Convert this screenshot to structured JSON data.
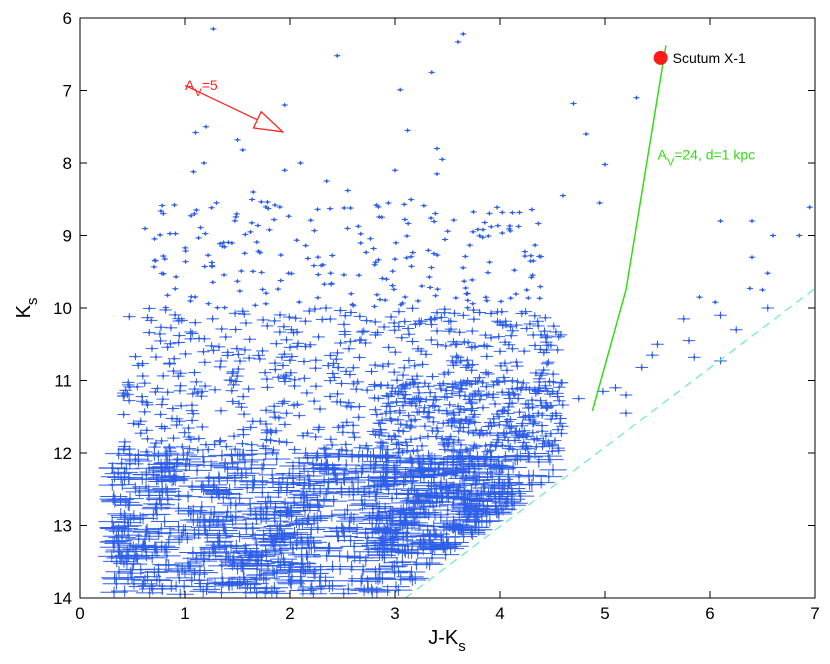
{
  "chart_data": {
    "type": "scatter",
    "xlabel": "J-K",
    "xlabel_sub": "s",
    "ylabel": "K",
    "ylabel_sub": "s",
    "xlim": [
      0,
      7
    ],
    "ylim": [
      6,
      14
    ],
    "y_reversed": true,
    "x_ticks": [
      "0",
      "1",
      "2",
      "3",
      "4",
      "5",
      "6",
      "7"
    ],
    "y_ticks": [
      "6",
      "7",
      "8",
      "9",
      "10",
      "11",
      "12",
      "13",
      "14"
    ],
    "grid": false,
    "colors": {
      "stars": "#2f5fe8",
      "source": "#ff1a1a",
      "extinction_line": "#33dd11",
      "limit_line": "#66e8cc",
      "arrow": "#ff2222"
    },
    "highlighted_source": {
      "label": "Scutum X-1",
      "x": 5.53,
      "y": 6.55
    },
    "reddening_vector": {
      "label_main": "A",
      "label_sub": "V",
      "label_rest": "=5",
      "x0": 1.0,
      "y0": 6.93,
      "x1": 1.93,
      "y1": 7.57
    },
    "extinction_track": {
      "label_main": "A",
      "label_sub": "V",
      "label_rest": "=24, d=1 kpc",
      "points": [
        [
          4.88,
          11.42
        ],
        [
          5.2,
          9.75
        ],
        [
          5.58,
          6.38
        ]
      ]
    },
    "completeness_limit": {
      "style": "dashed",
      "points": [
        [
          3.1,
          14.0
        ],
        [
          7.0,
          9.73
        ]
      ]
    },
    "sparse_stars": [
      [
        1.27,
        6.15
      ],
      [
        3.65,
        6.22
      ],
      [
        3.6,
        6.33
      ],
      [
        2.45,
        6.52
      ],
      [
        3.35,
        6.75
      ],
      [
        3.05,
        6.99
      ],
      [
        5.3,
        7.1
      ],
      [
        1.95,
        7.2
      ],
      [
        4.7,
        7.18
      ],
      [
        1.2,
        7.5
      ],
      [
        1.1,
        7.58
      ],
      [
        3.12,
        7.55
      ],
      [
        4.82,
        7.6
      ],
      [
        1.5,
        7.68
      ],
      [
        1.55,
        7.82
      ],
      [
        3.4,
        7.8
      ],
      [
        3.45,
        7.95
      ],
      [
        1.18,
        8.0
      ],
      [
        2.1,
        8.0
      ],
      [
        5.0,
        8.02
      ],
      [
        3.0,
        8.1
      ],
      [
        1.08,
        8.12
      ],
      [
        2.35,
        8.25
      ],
      [
        3.4,
        8.15
      ],
      [
        1.95,
        8.1
      ],
      [
        4.95,
        8.55
      ],
      [
        0.9,
        8.58
      ],
      [
        1.65,
        8.4
      ],
      [
        2.55,
        8.38
      ],
      [
        6.95,
        8.61
      ],
      [
        1.3,
        8.55
      ],
      [
        4.6,
        8.45
      ],
      [
        6.4,
        8.8
      ],
      [
        6.1,
        8.8
      ],
      [
        6.85,
        9.0
      ],
      [
        6.6,
        9.0
      ],
      [
        6.4,
        9.3
      ],
      [
        6.55,
        9.52
      ],
      [
        6.38,
        9.73
      ],
      [
        6.5,
        9.75
      ],
      [
        5.9,
        9.85
      ],
      [
        6.05,
        9.92
      ],
      [
        6.1,
        10.1
      ],
      [
        6.55,
        10.0
      ],
      [
        5.75,
        10.15
      ],
      [
        6.25,
        10.3
      ],
      [
        5.8,
        10.45
      ],
      [
        5.5,
        10.5
      ],
      [
        5.85,
        10.68
      ],
      [
        5.45,
        10.65
      ],
      [
        6.1,
        10.73
      ],
      [
        5.35,
        10.82
      ],
      [
        5.2,
        11.2
      ],
      [
        4.98,
        11.15
      ],
      [
        5.2,
        11.45
      ],
      [
        5.1,
        11.1
      ],
      [
        4.75,
        11.25
      ]
    ],
    "dense_regions": [
      {
        "x": [
          0.3,
          4.2
        ],
        "y": [
          12.0,
          13.95
        ],
        "count": 900
      },
      {
        "x": [
          0.4,
          4.6
        ],
        "y": [
          10.0,
          12.0
        ],
        "count": 600
      },
      {
        "x": [
          0.6,
          4.4
        ],
        "y": [
          8.5,
          10.0
        ],
        "count": 220
      },
      {
        "x": [
          2.8,
          4.6
        ],
        "y": [
          11.0,
          13.4
        ],
        "count": 450
      }
    ]
  }
}
